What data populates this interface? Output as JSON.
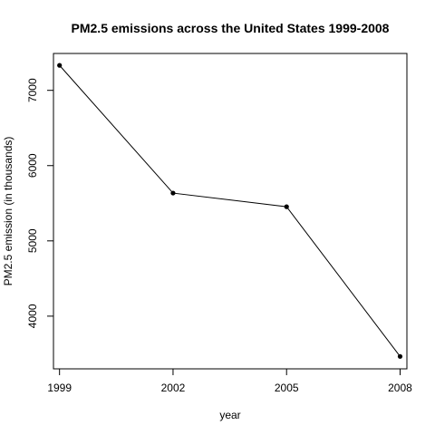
{
  "chart_data": {
    "type": "line",
    "title": "PM2.5 emissions across the United States 1999-2008",
    "xlabel": "year",
    "ylabel": "PM2.5 emission (in thousands)",
    "x": [
      1999,
      2002,
      2005,
      2008
    ],
    "y": [
      7332,
      5635,
      5454,
      3465
    ],
    "xlim": [
      1998.84,
      2008.18
    ],
    "ylim": [
      3300,
      7490
    ],
    "xticks": [
      1999,
      2002,
      2005,
      2008
    ],
    "yticks": [
      4000,
      5000,
      6000,
      7000
    ],
    "series_color": "#000000"
  }
}
